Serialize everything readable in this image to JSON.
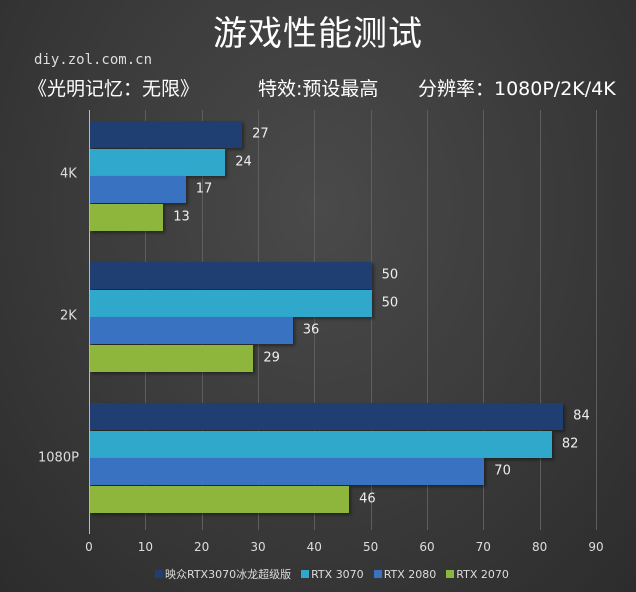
{
  "header": {
    "title": "游戏性能测试",
    "site": "diy.zol.com.cn",
    "game": "《光明记忆：无限》",
    "effects": "特效:预设最高",
    "resolution": "分辨率：1080P/2K/4K"
  },
  "chart_data": {
    "type": "bar",
    "orientation": "horizontal",
    "title": "游戏性能测试",
    "subtitle": "《光明记忆：无限》 特效:预设最高 分辨率：1080P/2K/4K",
    "categories": [
      "4K",
      "2K",
      "1080P"
    ],
    "series": [
      {
        "name": "映众RTX3070冰龙超级版",
        "color": "#1f3f72",
        "values": [
          27,
          50,
          84
        ]
      },
      {
        "name": "RTX 3070",
        "color": "#2fa8cc",
        "values": [
          24,
          50,
          82
        ]
      },
      {
        "name": "RTX 2080",
        "color": "#3a72c2",
        "values": [
          17,
          36,
          70
        ]
      },
      {
        "name": "RTX 2070",
        "color": "#8fb63c",
        "values": [
          13,
          29,
          46
        ]
      }
    ],
    "xlabel": "",
    "ylabel": "",
    "xlim": [
      0,
      90
    ],
    "xticks": [
      0,
      10,
      20,
      30,
      40,
      50,
      60,
      70,
      80,
      90
    ],
    "grid": true,
    "legend_position": "bottom"
  },
  "labels": {
    "cat0": "4K",
    "cat1": "2K",
    "cat2": "1080P",
    "legend0": "映众RTX3070冰龙超级版",
    "legend1": "RTX 3070",
    "legend2": "RTX 2080",
    "legend3": "RTX 2070",
    "t0": "0",
    "t1": "10",
    "t2": "20",
    "t3": "30",
    "t4": "40",
    "t5": "50",
    "t6": "60",
    "t7": "70",
    "t8": "80",
    "t9": "90",
    "v00": "27",
    "v01": "24",
    "v02": "17",
    "v03": "13",
    "v10": "50",
    "v11": "50",
    "v12": "36",
    "v13": "29",
    "v20": "84",
    "v21": "82",
    "v22": "70",
    "v23": "46"
  }
}
